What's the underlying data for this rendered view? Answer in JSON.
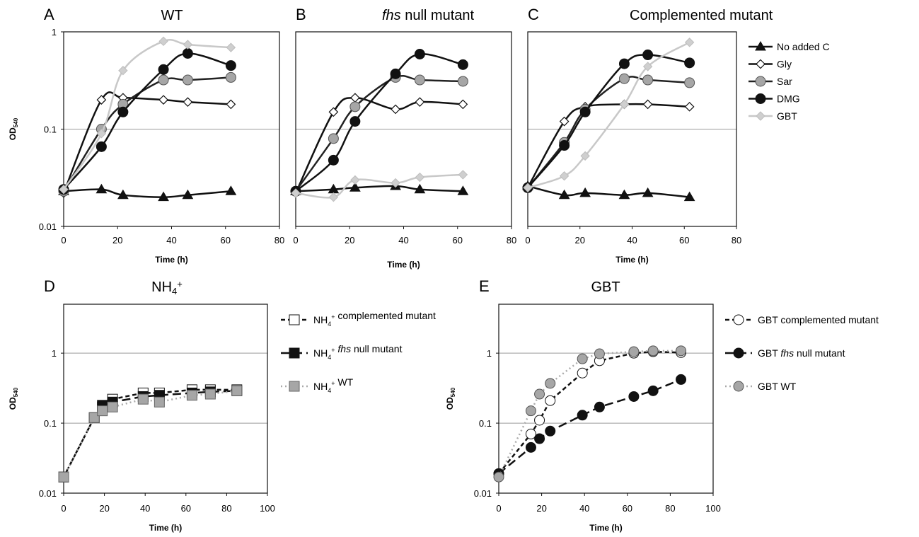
{
  "chart_data": [
    {
      "panel": "A",
      "title": "WT",
      "type": "line",
      "scale": "log",
      "xlabel": "Time (h)",
      "ylabel": "OD540",
      "xlim": [
        0,
        80
      ],
      "ylim": [
        0.01,
        1
      ],
      "xticks": [
        "0",
        "20",
        "40",
        "60",
        "80"
      ],
      "yticks": [
        "0.01",
        "0.1",
        "1"
      ],
      "series": [
        {
          "name": "No added C",
          "color": "#111111",
          "marker": "triangle",
          "style": "solid",
          "x": [
            0,
            14,
            22,
            37,
            46,
            62
          ],
          "y": [
            0.023,
            0.024,
            0.021,
            0.02,
            0.021,
            0.023
          ]
        },
        {
          "name": "Gly",
          "color": "#111111",
          "marker": "diamond-open",
          "style": "solid",
          "x": [
            0,
            14,
            22,
            37,
            46,
            62
          ],
          "y": [
            0.022,
            0.2,
            0.21,
            0.2,
            0.19,
            0.18
          ]
        },
        {
          "name": "Sar",
          "color": "#222222",
          "marker": "circle-gray",
          "style": "solid",
          "x": [
            0,
            14,
            22,
            37,
            46,
            62
          ],
          "y": [
            0.023,
            0.1,
            0.18,
            0.32,
            0.32,
            0.34
          ]
        },
        {
          "name": "DMG",
          "color": "#111111",
          "marker": "circle-black",
          "style": "solid",
          "x": [
            0,
            14,
            22,
            37,
            46,
            62
          ],
          "y": [
            0.024,
            0.066,
            0.15,
            0.41,
            0.6,
            0.45
          ]
        },
        {
          "name": "GBT",
          "color": "#c8c8c8",
          "marker": "diamond-gray",
          "style": "solid",
          "x": [
            0,
            14,
            22,
            37,
            46,
            62
          ],
          "y": [
            0.024,
            0.09,
            0.4,
            0.8,
            0.74,
            0.69
          ]
        }
      ]
    },
    {
      "panel": "B",
      "title": "fhs null mutant",
      "type": "line",
      "scale": "log",
      "xlabel": "Time (h)",
      "ylabel": "",
      "xlim": [
        0,
        80
      ],
      "ylim": [
        0.01,
        1
      ],
      "xticks": [
        "0",
        "20",
        "40",
        "60",
        "80"
      ],
      "yticks": [],
      "series": [
        {
          "name": "No added C",
          "color": "#111111",
          "marker": "triangle",
          "style": "solid",
          "x": [
            0,
            14,
            22,
            37,
            46,
            62
          ],
          "y": [
            0.023,
            0.024,
            0.025,
            0.026,
            0.024,
            0.023
          ]
        },
        {
          "name": "Gly",
          "color": "#111111",
          "marker": "diamond-open",
          "style": "solid",
          "x": [
            0,
            14,
            22,
            37,
            46,
            62
          ],
          "y": [
            0.022,
            0.15,
            0.21,
            0.16,
            0.19,
            0.18
          ]
        },
        {
          "name": "Sar",
          "color": "#222222",
          "marker": "circle-gray",
          "style": "solid",
          "x": [
            0,
            14,
            22,
            37,
            46,
            62
          ],
          "y": [
            0.023,
            0.08,
            0.17,
            0.34,
            0.32,
            0.31
          ]
        },
        {
          "name": "DMG",
          "color": "#111111",
          "marker": "circle-black",
          "style": "solid",
          "x": [
            0,
            14,
            22,
            37,
            46,
            62
          ],
          "y": [
            0.023,
            0.048,
            0.12,
            0.37,
            0.59,
            0.46
          ]
        },
        {
          "name": "GBT",
          "color": "#c8c8c8",
          "marker": "diamond-gray",
          "style": "solid",
          "x": [
            0,
            14,
            22,
            37,
            46,
            62
          ],
          "y": [
            0.022,
            0.02,
            0.03,
            0.028,
            0.032,
            0.034
          ]
        }
      ]
    },
    {
      "panel": "C",
      "title": "Complemented mutant",
      "type": "line",
      "scale": "log",
      "xlabel": "Time (h)",
      "ylabel": "",
      "xlim": [
        0,
        80
      ],
      "ylim": [
        0.01,
        1
      ],
      "xticks": [
        "0",
        "20",
        "40",
        "60",
        "80"
      ],
      "yticks": [],
      "series": [
        {
          "name": "No added C",
          "color": "#111111",
          "marker": "triangle",
          "style": "solid",
          "x": [
            0,
            14,
            22,
            37,
            46,
            62
          ],
          "y": [
            0.026,
            0.021,
            0.022,
            0.021,
            0.022,
            0.02
          ]
        },
        {
          "name": "Gly",
          "color": "#111111",
          "marker": "diamond-open",
          "style": "solid",
          "x": [
            0,
            14,
            22,
            37,
            46,
            62
          ],
          "y": [
            0.025,
            0.12,
            0.17,
            0.18,
            0.18,
            0.17
          ]
        },
        {
          "name": "Sar",
          "color": "#222222",
          "marker": "circle-gray",
          "style": "solid",
          "x": [
            0,
            14,
            22,
            37,
            46,
            62
          ],
          "y": [
            0.025,
            0.073,
            0.16,
            0.33,
            0.32,
            0.3
          ]
        },
        {
          "name": "DMG",
          "color": "#111111",
          "marker": "circle-black",
          "style": "solid",
          "x": [
            0,
            14,
            22,
            37,
            46,
            62
          ],
          "y": [
            0.025,
            0.068,
            0.15,
            0.47,
            0.58,
            0.48
          ]
        },
        {
          "name": "GBT",
          "color": "#c8c8c8",
          "marker": "diamond-gray",
          "style": "solid",
          "x": [
            0,
            14,
            22,
            37,
            46,
            62
          ],
          "y": [
            0.025,
            0.033,
            0.053,
            0.18,
            0.44,
            0.78
          ]
        }
      ]
    },
    {
      "panel": "D",
      "title": "NH4+",
      "type": "line",
      "scale": "log",
      "xlabel": "Time (h)",
      "ylabel": "OD540",
      "xlim": [
        0,
        100
      ],
      "ylim": [
        0.01,
        5
      ],
      "xticks": [
        "0",
        "20",
        "40",
        "60",
        "80",
        "100"
      ],
      "yticks": [
        "0.01",
        "0.1",
        "1"
      ],
      "series": [
        {
          "name": "NH4+ complemented mutant",
          "color": "#111111",
          "marker": "square-open",
          "style": "dash-short",
          "x": [
            0,
            15,
            19,
            24,
            39,
            47,
            63,
            72,
            85
          ],
          "y": [
            0.017,
            0.12,
            0.17,
            0.22,
            0.27,
            0.27,
            0.3,
            0.3,
            0.3
          ]
        },
        {
          "name": "NH4+ fhs null mutant",
          "color": "#111111",
          "marker": "square-black",
          "style": "dash-long",
          "x": [
            0,
            15,
            19,
            24,
            39,
            47,
            63,
            72,
            85
          ],
          "y": [
            0.017,
            0.12,
            0.18,
            0.2,
            0.24,
            0.25,
            0.27,
            0.28,
            0.29
          ]
        },
        {
          "name": "NH4+ WT",
          "color": "#aaaaaa",
          "marker": "square-gray",
          "style": "dot",
          "x": [
            0,
            15,
            19,
            24,
            39,
            47,
            63,
            72,
            85
          ],
          "y": [
            0.017,
            0.12,
            0.15,
            0.17,
            0.22,
            0.2,
            0.25,
            0.26,
            0.29
          ]
        }
      ]
    },
    {
      "panel": "E",
      "title": "GBT",
      "type": "line",
      "scale": "log",
      "xlabel": "Time (h)",
      "ylabel": "OD540",
      "xlim": [
        0,
        100
      ],
      "ylim": [
        0.01,
        5
      ],
      "xticks": [
        "0",
        "20",
        "40",
        "60",
        "80",
        "100"
      ],
      "yticks": [
        "0.01",
        "0.1",
        "1"
      ],
      "series": [
        {
          "name": "GBT complemented mutant",
          "color": "#111111",
          "marker": "circle-open",
          "style": "dash-short",
          "x": [
            0,
            15,
            19,
            24,
            39,
            47,
            63,
            72,
            85
          ],
          "y": [
            0.019,
            0.07,
            0.11,
            0.21,
            0.52,
            0.78,
            1.0,
            1.05,
            1.02
          ]
        },
        {
          "name": "GBT fhs null mutant",
          "color": "#111111",
          "marker": "circle-black",
          "style": "dash-long",
          "x": [
            0,
            15,
            19,
            24,
            39,
            47,
            63,
            72,
            85
          ],
          "y": [
            0.019,
            0.045,
            0.06,
            0.077,
            0.13,
            0.17,
            0.24,
            0.29,
            0.42
          ]
        },
        {
          "name": "GBT WT",
          "color": "#aaaaaa",
          "marker": "circle-gray",
          "style": "dot",
          "x": [
            0,
            15,
            19,
            24,
            39,
            47,
            63,
            72,
            85
          ],
          "y": [
            0.017,
            0.15,
            0.26,
            0.37,
            0.83,
            0.98,
            1.05,
            1.08,
            1.08
          ]
        }
      ]
    }
  ]
}
